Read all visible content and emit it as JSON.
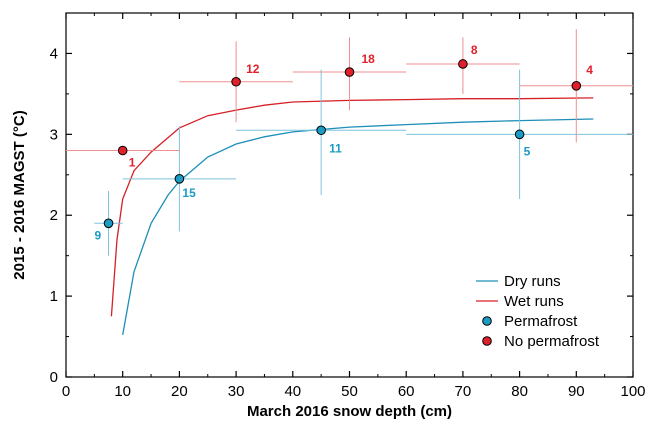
{
  "chart_data": {
    "type": "scatter",
    "xlabel": "March 2016 snow depth (cm)",
    "ylabel": "2015 - 2016 MAGST (°C)",
    "xlim": [
      0,
      100
    ],
    "ylim": [
      0,
      4.5
    ],
    "x_ticks": [
      "0",
      "10",
      "20",
      "30",
      "40",
      "50",
      "60",
      "70",
      "80",
      "90",
      "100"
    ],
    "y_ticks": [
      "0",
      "1",
      "2",
      "3",
      "4"
    ],
    "grid": false,
    "legend_position": "bottom-right",
    "colors": {
      "permafrost": "#1b9cc4",
      "no_permafrost": "#e0202a",
      "dry_curve": "#1d8fb8",
      "wet_curve": "#d62027"
    },
    "series": [
      {
        "name": "Permafrost",
        "points": [
          {
            "label": "9",
            "x": 7.5,
            "y": 1.9,
            "xerr": [
              5,
              10
            ],
            "yerr": [
              1.5,
              2.3
            ]
          },
          {
            "label": "15",
            "x": 20,
            "y": 2.45,
            "xerr": [
              10,
              30
            ],
            "yerr": [
              1.8,
              3.1
            ]
          },
          {
            "label": "11",
            "x": 45,
            "y": 3.05,
            "xerr": [
              30,
              60
            ],
            "yerr": [
              2.25,
              3.8
            ]
          },
          {
            "label": "5",
            "x": 80,
            "y": 3.0,
            "xerr": [
              60,
              100
            ],
            "yerr": [
              2.2,
              3.8
            ]
          }
        ]
      },
      {
        "name": "No permafrost",
        "points": [
          {
            "label": "1",
            "x": 10,
            "y": 2.8,
            "xerr": [
              0,
              20
            ],
            "yerr": [
              2.8,
              2.8
            ]
          },
          {
            "label": "12",
            "x": 30,
            "y": 3.65,
            "xerr": [
              20,
              40
            ],
            "yerr": [
              3.15,
              4.15
            ]
          },
          {
            "label": "18",
            "x": 50,
            "y": 3.77,
            "xerr": [
              40,
              60
            ],
            "yerr": [
              3.3,
              4.2
            ]
          },
          {
            "label": "8",
            "x": 70,
            "y": 3.87,
            "xerr": [
              60,
              80
            ],
            "yerr": [
              3.5,
              4.2
            ]
          },
          {
            "label": "4",
            "x": 90,
            "y": 3.6,
            "xerr": [
              80,
              100
            ],
            "yerr": [
              2.9,
              4.3
            ]
          }
        ]
      }
    ],
    "curves": [
      {
        "name": "Dry runs",
        "x": [
          10,
          12,
          15,
          18,
          20,
          25,
          30,
          35,
          40,
          50,
          60,
          70,
          80,
          93
        ],
        "y": [
          0.52,
          1.3,
          1.9,
          2.25,
          2.42,
          2.72,
          2.88,
          2.97,
          3.03,
          3.09,
          3.12,
          3.15,
          3.17,
          3.19
        ]
      },
      {
        "name": "Wet runs",
        "x": [
          8,
          9,
          10,
          12,
          15,
          18,
          20,
          25,
          30,
          35,
          40,
          50,
          60,
          70,
          80,
          93
        ],
        "y": [
          0.75,
          1.7,
          2.2,
          2.55,
          2.78,
          2.96,
          3.08,
          3.23,
          3.3,
          3.36,
          3.4,
          3.42,
          3.43,
          3.44,
          3.44,
          3.45
        ]
      }
    ],
    "legend": [
      "Dry runs",
      "Wet runs",
      "Permafrost",
      "No permafrost"
    ]
  }
}
